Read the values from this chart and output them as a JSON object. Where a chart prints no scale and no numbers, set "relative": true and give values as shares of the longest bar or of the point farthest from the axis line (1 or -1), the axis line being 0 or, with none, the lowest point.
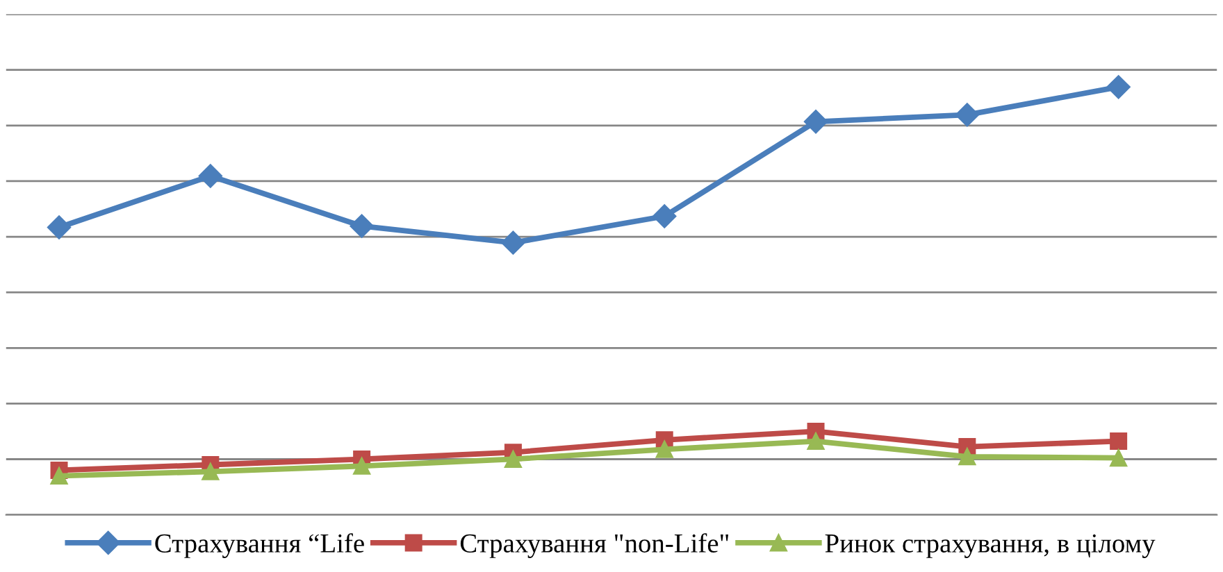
{
  "chart_data": {
    "type": "line",
    "relative": true,
    "categories": [
      null,
      null,
      null,
      null,
      null,
      null,
      null,
      null
    ],
    "series": [
      {
        "name": "Страхування “Life",
        "color": "#4a7ebb",
        "marker": "diamond",
        "values": [
          0.672,
          0.792,
          0.675,
          0.636,
          0.698,
          0.919,
          0.935,
          1
        ]
      },
      {
        "name": "Страхування \"non-Life\"",
        "color": "#be4b48",
        "marker": "square",
        "values": [
          0.104,
          0.117,
          0.13,
          0.146,
          0.175,
          0.195,
          0.159,
          0.172
        ]
      },
      {
        "name": "Ринок страхування, в цілому",
        "color": "#98b954",
        "marker": "triangle",
        "values": [
          0.091,
          0.101,
          0.114,
          0.13,
          0.153,
          0.172,
          0.136,
          0.133
        ]
      }
    ],
    "grid": "y",
    "legend": "bottom",
    "line_style": "solid"
  }
}
